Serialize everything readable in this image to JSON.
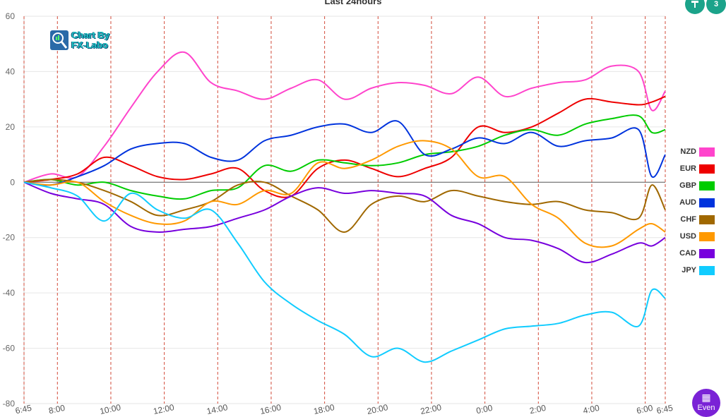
{
  "chart_data": {
    "type": "line",
    "title": "Last 24hours",
    "ylim": [
      -80,
      60
    ],
    "yticks": [
      60,
      40,
      20,
      0,
      -20,
      -40,
      -60,
      -80
    ],
    "xticks": [
      "6:45",
      "8:00",
      "10:00",
      "12:00",
      "14:00",
      "16:00",
      "18:00",
      "20:00",
      "22:00",
      "0:00",
      "2:00",
      "4:00",
      "6:00",
      "6:45"
    ],
    "xtick_hours": [
      0,
      1.25,
      3.25,
      5.25,
      7.25,
      9.25,
      11.25,
      13.25,
      15.25,
      17.25,
      19.25,
      21.25,
      23.25,
      24
    ],
    "x_hours": [
      0,
      1,
      2,
      3,
      4,
      5,
      6,
      7,
      8,
      9,
      10,
      11,
      12,
      13,
      14,
      15,
      16,
      17,
      18,
      19,
      20,
      21,
      22,
      23,
      23.5,
      24
    ],
    "series": [
      {
        "name": "NZD",
        "color": "#ff44cc",
        "values": [
          0,
          3,
          2,
          13,
          27,
          40,
          47,
          36,
          33,
          30,
          34,
          37,
          30,
          34,
          36,
          35,
          32,
          38,
          31,
          34,
          36,
          37,
          42,
          40,
          26,
          33
        ]
      },
      {
        "name": "EUR",
        "color": "#ee0000",
        "values": [
          0,
          1,
          3,
          9,
          6,
          2,
          1,
          3,
          5,
          -3,
          -5,
          5,
          8,
          5,
          2,
          5,
          9,
          20,
          18,
          20,
          25,
          30,
          29,
          28,
          29,
          31
        ]
      },
      {
        "name": "GBP",
        "color": "#00cc00",
        "values": [
          0,
          1,
          -1,
          0,
          -3,
          -5,
          -6,
          -3,
          -2,
          6,
          4,
          8,
          7,
          6,
          7,
          10,
          11,
          13,
          17,
          19,
          17,
          21,
          23,
          24,
          18,
          19
        ]
      },
      {
        "name": "AUD",
        "color": "#0033dd",
        "values": [
          0,
          -1,
          2,
          6,
          12,
          14,
          14,
          9,
          8,
          15,
          17,
          20,
          21,
          18,
          22,
          10,
          12,
          16,
          14,
          18,
          13,
          15,
          16,
          19,
          2,
          10
        ]
      },
      {
        "name": "CHF",
        "color": "#a06800",
        "values": [
          0,
          1,
          0,
          -3,
          -7,
          -12,
          -10,
          -7,
          -1,
          0,
          -5,
          -10,
          -18,
          -8,
          -5,
          -7,
          -3,
          -5,
          -7,
          -8,
          -7,
          -10,
          -11,
          -13,
          -1,
          -10
        ]
      },
      {
        "name": "USD",
        "color": "#ff9900",
        "values": [
          0,
          -1,
          0,
          -7,
          -12,
          -15,
          -14,
          -7,
          -8,
          -3,
          -4,
          7,
          5,
          8,
          13,
          15,
          12,
          2,
          2,
          -8,
          -13,
          -22,
          -23,
          -17,
          -15,
          -18
        ]
      },
      {
        "name": "CAD",
        "color": "#7700dd",
        "values": [
          0,
          -4,
          -6,
          -8,
          -16,
          -18,
          -17,
          -16,
          -13,
          -10,
          -5,
          -2,
          -4,
          -3,
          -4,
          -5,
          -12,
          -15,
          -20,
          -21,
          -24,
          -29,
          -26,
          -22,
          -23,
          -20
        ]
      },
      {
        "name": "JPY",
        "color": "#11ccff",
        "values": [
          0,
          -2,
          -5,
          -14,
          -4,
          -10,
          -13,
          -10,
          -22,
          -36,
          -44,
          -50,
          -55,
          -63,
          -60,
          -65,
          -61,
          -57,
          -53,
          -52,
          -51,
          -48,
          -47,
          -52,
          -39,
          -42
        ]
      }
    ]
  },
  "logo": {
    "line1": "Chart By",
    "line2": "FX-Labo"
  },
  "controls": {
    "top_btn_2": "3",
    "event_label": "Even"
  }
}
